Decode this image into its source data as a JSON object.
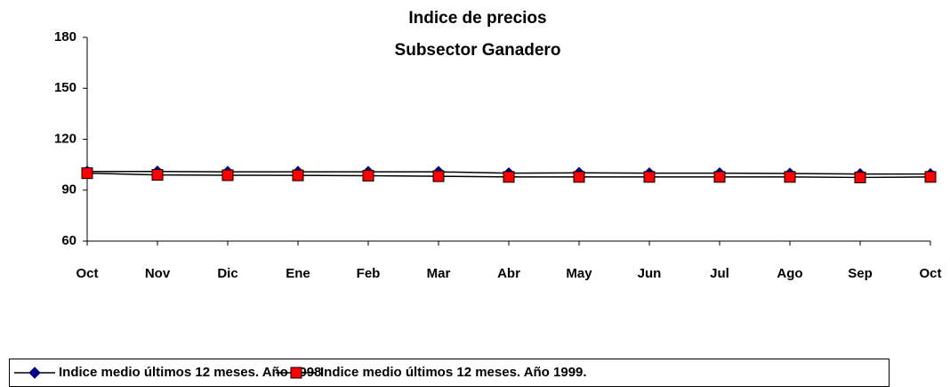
{
  "chart_data": {
    "type": "line",
    "title": "Indice de precios",
    "subtitle": "Subsector Ganadero",
    "categories": [
      "Oct",
      "Nov",
      "Dic",
      "Ene",
      "Feb",
      "Mar",
      "Abr",
      "May",
      "Jun",
      "Jul",
      "Ago",
      "Sep",
      "Oct"
    ],
    "series": [
      {
        "name": "Indice medio últimos 12 meses. Año 1998",
        "color": "#000080",
        "marker": "diamond",
        "values": [
          101,
          101,
          100.8,
          100.8,
          100.8,
          100.8,
          100,
          100.2,
          100,
          100,
          99.8,
          99.5,
          99.5
        ]
      },
      {
        "name": "Indice medio últimos 12 meses. Año 1999.",
        "color": "#ff0000",
        "marker": "square",
        "values": [
          100,
          99,
          98.8,
          98.7,
          98.5,
          98.2,
          97.8,
          97.8,
          97.8,
          97.8,
          97.8,
          97.5,
          97.8
        ]
      }
    ],
    "ylim": [
      60,
      180
    ],
    "yticks": [
      60,
      90,
      120,
      150,
      180
    ],
    "grid": false,
    "legend": "bottom"
  }
}
